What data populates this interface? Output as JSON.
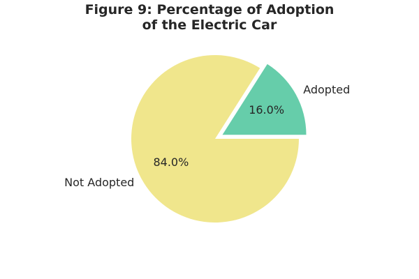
{
  "chart_data": {
    "type": "pie",
    "title_lines": [
      "Figure 9: Percentage of Adoption",
      "of the Electric Car"
    ],
    "slices": [
      {
        "label": "Adopted",
        "value": 16.0,
        "percent_label": "16.0%",
        "color": "#66cdaa",
        "exploded": true
      },
      {
        "label": "Not Adopted",
        "value": 84.0,
        "percent_label": "84.0%",
        "color": "#f0e68c",
        "exploded": false
      }
    ],
    "start_angle_deg": 0,
    "direction": "counterclockwise",
    "legend": "none"
  }
}
